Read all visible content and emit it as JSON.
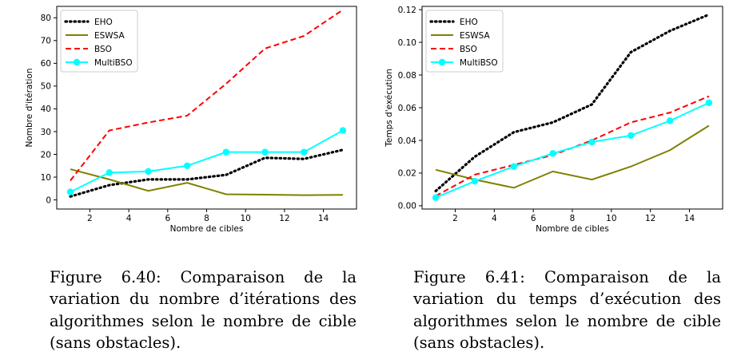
{
  "chart_data": [
    {
      "type": "line",
      "xlabel": "Nombre de cibles",
      "ylabel": "Nombre d'itération",
      "xlim": [
        0.3,
        15.7
      ],
      "ylim": [
        -4,
        85
      ],
      "xticks": [
        2,
        4,
        6,
        8,
        10,
        12,
        14
      ],
      "yticks": [
        0,
        10,
        20,
        30,
        40,
        50,
        60,
        70,
        80
      ],
      "tick_labels_y": [
        "0",
        "10",
        "20",
        "30",
        "40",
        "50",
        "60",
        "70",
        "80"
      ],
      "tick_labels_x": [
        "2",
        "4",
        "6",
        "8",
        "10",
        "12",
        "14"
      ],
      "legend_position": "top-left",
      "grid": false,
      "x": [
        1,
        3,
        5,
        7,
        9,
        11,
        13,
        15
      ],
      "series": [
        {
          "name": "EHO",
          "color": "#000000",
          "style": "dotted",
          "values": [
            1.5,
            6.5,
            9.0,
            9.0,
            11.0,
            18.5,
            18.0,
            22.0
          ]
        },
        {
          "name": "ESWSA",
          "color": "#808000",
          "style": "solid",
          "values": [
            13.5,
            9.0,
            4.0,
            7.5,
            2.5,
            2.3,
            2.1,
            2.2
          ]
        },
        {
          "name": "BSO",
          "color": "#ff0000",
          "style": "dashed",
          "values": [
            8.5,
            30.5,
            34.0,
            37.0,
            51.0,
            66.5,
            72.0,
            83.5
          ]
        },
        {
          "name": "MultiBSO",
          "color": "#00ffff",
          "style": "solid-markers",
          "values": [
            3.5,
            12.0,
            12.5,
            15.0,
            21.0,
            21.0,
            21.0,
            30.5
          ]
        }
      ]
    },
    {
      "type": "line",
      "xlabel": "Nombre de cibles",
      "ylabel": "Temps d'exécution",
      "xlim": [
        0.3,
        15.7
      ],
      "ylim": [
        -0.002,
        0.122
      ],
      "xticks": [
        2,
        4,
        6,
        8,
        10,
        12,
        14
      ],
      "yticks": [
        0,
        0.02,
        0.04,
        0.06,
        0.08,
        0.1,
        0.12
      ],
      "tick_labels_y": [
        "0.00",
        "0.02",
        "0.04",
        "0.06",
        "0.08",
        "0.10",
        "0.12"
      ],
      "tick_labels_x": [
        "2",
        "4",
        "6",
        "8",
        "10",
        "12",
        "14"
      ],
      "legend_position": "top-left",
      "grid": false,
      "x": [
        1,
        3,
        5,
        7,
        9,
        11,
        13,
        15
      ],
      "series": [
        {
          "name": "EHO",
          "color": "#000000",
          "style": "dotted",
          "values": [
            0.009,
            0.03,
            0.045,
            0.051,
            0.062,
            0.094,
            0.107,
            0.117
          ]
        },
        {
          "name": "ESWSA",
          "color": "#808000",
          "style": "solid",
          "values": [
            0.022,
            0.016,
            0.011,
            0.021,
            0.016,
            0.024,
            0.034,
            0.049
          ]
        },
        {
          "name": "BSO",
          "color": "#ff0000",
          "style": "dashed",
          "values": [
            0.006,
            0.019,
            0.025,
            0.031,
            0.04,
            0.051,
            0.057,
            0.067
          ]
        },
        {
          "name": "MultiBSO",
          "color": "#00ffff",
          "style": "solid-markers",
          "values": [
            0.005,
            0.015,
            0.024,
            0.032,
            0.039,
            0.043,
            0.052,
            0.063
          ]
        }
      ]
    }
  ],
  "captions": {
    "left": "Figure 6.40: Comparaison de la variation du nombre d’itérations des algorithmes selon le nombre de cible (sans obstacles).",
    "right": "Figure 6.41: Comparaison de la variation du temps d’exécution des algorithmes selon le nombre de cible (sans obstacles)."
  }
}
